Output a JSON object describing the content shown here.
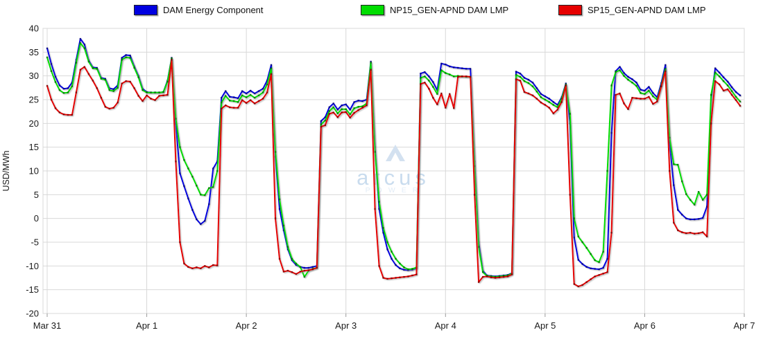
{
  "legend": {
    "items": [
      {
        "label": "DAM Energy Component",
        "color": "#0000e0"
      },
      {
        "label": "NP15_GEN-APND DAM LMP",
        "color": "#00dd00"
      },
      {
        "label": "SP15_GEN-APND DAM LMP",
        "color": "#e60000"
      }
    ]
  },
  "watermark": {
    "brand": "arcus",
    "subtitle": "POWER",
    "logo_color": "#d3e1f0",
    "brand_color": "#c9dcee",
    "subtitle_color": "#e2ecf6"
  },
  "chart_data": {
    "type": "line",
    "title": "",
    "ylabel": "USD/MWh",
    "ylim": [
      -20,
      40
    ],
    "y_ticks": [
      40,
      35,
      30,
      25,
      20,
      15,
      10,
      5,
      0,
      -5,
      -10,
      -15,
      -20
    ],
    "x_tick_labels": [
      "Mar 31",
      "Apr 1",
      "Apr 2",
      "Apr 3",
      "Apr 4",
      "Apr 5",
      "Apr 6",
      "Apr 7"
    ],
    "x_unit": "hour",
    "points_per_day": 24,
    "grid": true,
    "legend_position": "top",
    "grid_color": "#d8d8d8",
    "series": [
      {
        "name": "DAM Energy Component",
        "color": "#0000e0",
        "marker_color": "#000066",
        "values": [
          35.8,
          32.5,
          29.8,
          28.0,
          27.3,
          27.4,
          28.6,
          33.4,
          37.8,
          36.6,
          33.3,
          31.8,
          31.7,
          29.6,
          29.4,
          27.4,
          27.2,
          28.0,
          33.8,
          34.4,
          34.3,
          32.0,
          30.0,
          27.3,
          26.6,
          26.5,
          26.5,
          26.5,
          26.6,
          29.0,
          33.8,
          20.0,
          9.5,
          6.8,
          4.2,
          1.8,
          -0.2,
          -1.2,
          -0.5,
          3.0,
          10.5,
          12.0,
          25.4,
          26.8,
          25.6,
          25.5,
          25.3,
          26.8,
          26.3,
          26.9,
          26.3,
          26.8,
          27.3,
          29.0,
          32.3,
          13.0,
          2.0,
          -2.5,
          -6.5,
          -8.8,
          -9.8,
          -10.2,
          -10.4,
          -10.4,
          -10.2,
          -10.0,
          20.5,
          21.3,
          23.4,
          24.2,
          22.9,
          23.8,
          24.0,
          22.9,
          24.5,
          24.8,
          24.7,
          25.0,
          33.0,
          15.0,
          2.0,
          -3.0,
          -6.5,
          -8.5,
          -9.8,
          -10.5,
          -10.8,
          -10.9,
          -10.8,
          -10.5,
          30.5,
          30.8,
          29.9,
          28.7,
          27.0,
          32.6,
          32.4,
          32.0,
          31.8,
          31.7,
          31.6,
          31.5,
          31.5,
          12.0,
          -5.0,
          -11.0,
          -12.0,
          -12.1,
          -12.2,
          -12.1,
          -12.0,
          -11.9,
          -11.5,
          30.9,
          30.5,
          29.6,
          29.2,
          28.6,
          27.4,
          26.2,
          25.7,
          25.2,
          24.5,
          23.9,
          25.5,
          28.4,
          20.0,
          -4.0,
          -8.7,
          -9.6,
          -10.2,
          -10.5,
          -10.6,
          -10.7,
          -10.4,
          -8.5,
          18.0,
          31.0,
          31.9,
          30.6,
          29.8,
          29.3,
          28.6,
          27.1,
          26.9,
          27.7,
          26.4,
          25.5,
          28.5,
          32.3,
          16.0,
          7.0,
          1.8,
          0.8,
          0.0,
          -0.2,
          -0.2,
          -0.1,
          0.1,
          2.5,
          25.0,
          31.6,
          30.7,
          29.7,
          28.8,
          27.6,
          26.6,
          25.9
        ]
      },
      {
        "name": "NP15_GEN-APND DAM LMP",
        "color": "#00dd00",
        "marker_color": "#005500",
        "values": [
          33.9,
          31.0,
          28.7,
          27.0,
          26.4,
          26.5,
          27.8,
          32.8,
          36.9,
          35.8,
          33.0,
          31.6,
          31.5,
          29.4,
          29.2,
          27.0,
          26.8,
          27.5,
          33.4,
          33.9,
          33.8,
          31.7,
          29.7,
          27.0,
          26.5,
          26.5,
          26.5,
          26.5,
          26.6,
          28.8,
          33.7,
          21.0,
          15.0,
          12.3,
          10.5,
          8.8,
          6.9,
          5.0,
          4.9,
          6.4,
          6.6,
          10.0,
          24.4,
          25.8,
          24.8,
          24.7,
          24.5,
          25.9,
          25.5,
          26.0,
          25.4,
          25.9,
          26.5,
          28.2,
          31.6,
          14.0,
          4.0,
          -1.5,
          -6.0,
          -8.5,
          -9.5,
          -10.2,
          -12.3,
          -11.0,
          -10.6,
          -10.4,
          19.8,
          20.6,
          22.6,
          23.4,
          22.1,
          23.0,
          23.0,
          21.9,
          23.2,
          23.5,
          23.6,
          24.2,
          32.8,
          14.0,
          3.5,
          -2.0,
          -5.0,
          -7.0,
          -8.5,
          -9.5,
          -10.3,
          -10.7,
          -10.6,
          -10.3,
          29.6,
          29.9,
          29.0,
          27.7,
          26.2,
          31.2,
          30.6,
          30.3,
          29.9,
          30.0,
          29.9,
          29.8,
          29.8,
          11.0,
          -6.0,
          -11.3,
          -12.1,
          -12.2,
          -12.3,
          -12.2,
          -12.1,
          -12.0,
          -11.6,
          30.2,
          29.8,
          28.9,
          28.5,
          27.8,
          26.7,
          25.5,
          25.0,
          24.5,
          23.9,
          23.4,
          25.2,
          28.2,
          22.0,
          0.0,
          -3.8,
          -5.0,
          -6.2,
          -7.5,
          -8.8,
          -9.2,
          -7.0,
          10.0,
          28.0,
          30.8,
          31.2,
          30.0,
          29.2,
          28.6,
          27.9,
          26.4,
          26.2,
          26.9,
          25.7,
          25.0,
          28.0,
          31.5,
          17.0,
          11.4,
          11.3,
          7.8,
          5.1,
          3.9,
          2.9,
          5.6,
          3.9,
          5.0,
          26.0,
          30.7,
          29.9,
          28.9,
          28.0,
          26.8,
          25.6,
          24.6
        ]
      },
      {
        "name": "SP15_GEN-APND DAM LMP",
        "color": "#e60000",
        "marker_color": "#660000",
        "values": [
          27.9,
          25.0,
          23.2,
          22.3,
          21.9,
          21.8,
          21.8,
          26.5,
          31.3,
          31.9,
          30.4,
          29.0,
          27.4,
          25.4,
          23.5,
          23.1,
          23.3,
          24.4,
          28.4,
          28.9,
          28.8,
          27.4,
          25.8,
          24.7,
          25.9,
          25.2,
          24.9,
          25.8,
          25.9,
          26.0,
          33.4,
          12.0,
          -5.0,
          -9.5,
          -10.2,
          -10.5,
          -10.3,
          -10.5,
          -10.0,
          -10.3,
          -9.8,
          -9.9,
          23.1,
          23.8,
          23.4,
          23.3,
          23.3,
          24.9,
          24.3,
          24.9,
          24.2,
          24.7,
          25.2,
          26.5,
          30.4,
          0.0,
          -8.5,
          -11.2,
          -11.0,
          -11.3,
          -11.7,
          -11.2,
          -11.0,
          -10.9,
          -10.7,
          -10.4,
          19.3,
          19.6,
          22.0,
          22.3,
          21.3,
          22.3,
          22.4,
          21.2,
          22.2,
          22.8,
          23.3,
          23.8,
          31.3,
          2.0,
          -10.0,
          -12.5,
          -12.7,
          -12.6,
          -12.5,
          -12.4,
          -12.3,
          -12.2,
          -12.0,
          -11.8,
          28.3,
          28.6,
          27.3,
          25.4,
          24.0,
          26.3,
          23.3,
          26.2,
          23.2,
          29.8,
          29.9,
          29.9,
          29.8,
          5.0,
          -13.4,
          -12.3,
          -12.2,
          -12.4,
          -12.5,
          -12.4,
          -12.3,
          -12.2,
          -11.8,
          29.3,
          29.0,
          26.6,
          26.3,
          25.9,
          25.2,
          24.4,
          23.9,
          23.3,
          22.1,
          22.9,
          24.5,
          28.0,
          5.0,
          -13.8,
          -14.3,
          -14.0,
          -13.4,
          -12.8,
          -12.2,
          -11.9,
          -11.6,
          -11.3,
          -3.0,
          26.0,
          26.3,
          24.2,
          23.0,
          25.4,
          25.3,
          25.2,
          25.2,
          25.6,
          24.1,
          24.6,
          27.8,
          31.0,
          10.0,
          -0.9,
          -2.5,
          -2.9,
          -3.1,
          -3.0,
          -3.2,
          -3.1,
          -2.9,
          -3.8,
          20.0,
          28.9,
          28.2,
          26.9,
          27.2,
          26.0,
          24.9,
          23.7
        ]
      }
    ]
  }
}
